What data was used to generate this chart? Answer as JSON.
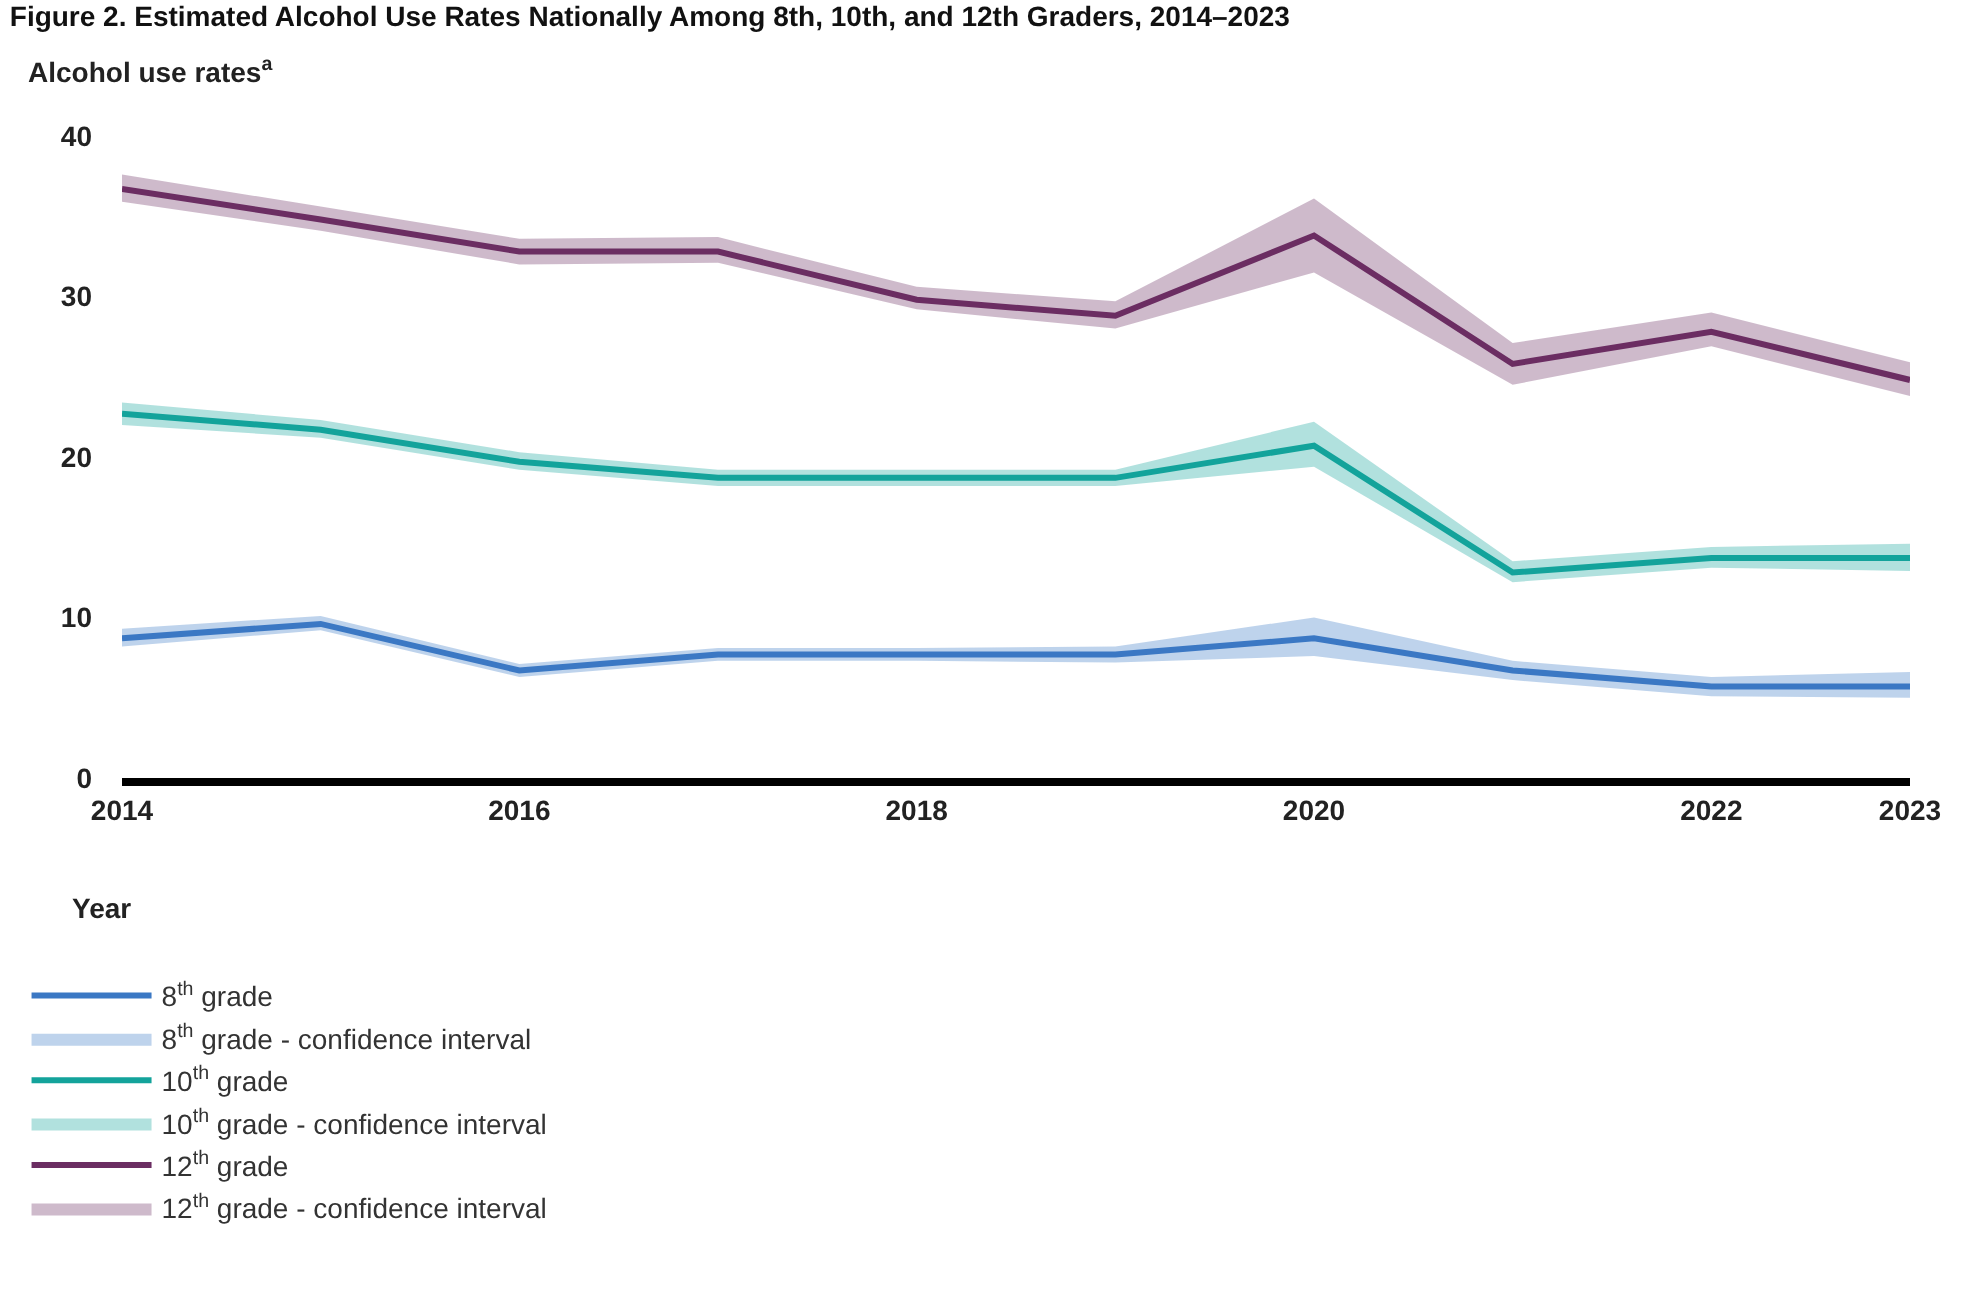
{
  "chart_data": {
    "type": "line",
    "title": "Figure 2. Estimated Alcohol Use Rates Nationally Among 8th, 10th, and 12th Graders, 2014–2023",
    "ylabel": "Alcohol use rates$^{a}$",
    "xlabel": "Year",
    "annotations": [
      "8$^{th}$ grade - confidence interval",
      "10$^{th}$ grade - confidence interval",
      "12$^{th}$ grade - confidence interval"
    ],
    "x": [
      2014,
      2015,
      2016,
      2017,
      2018,
      2019,
      2020,
      2021,
      2022,
      2023
    ],
    "xlim": [
      2014,
      2023
    ],
    "xticks": [
      2014,
      2016,
      2018,
      2020,
      2022,
      2023
    ],
    "ylim": [
      0,
      40
    ],
    "yticks": [
      0,
      10,
      20,
      30,
      40
    ],
    "grid": false,
    "legend": "bottom left",
    "marker": "none",
    "line_style": "solid",
    "series": [
      {
        "name": "8$^{th}$ grade",
        "color": "#3b78c4",
        "values": [
          8.7,
          9.6,
          6.7,
          7.7,
          7.7,
          7.7,
          8.7,
          6.7,
          5.7,
          5.7
        ],
        "lower": [
          8.2,
          9.2,
          6.3,
          7.3,
          7.3,
          7.2,
          7.6,
          6.1,
          5.1,
          5.0
        ],
        "upper": [
          9.3,
          10.1,
          7.1,
          8.1,
          8.1,
          8.2,
          10.0,
          7.3,
          6.3,
          6.6
        ]
      },
      {
        "name": "10$^{th}$ grade",
        "color": "#13a39b",
        "values": [
          22.7,
          21.7,
          19.7,
          18.7,
          18.7,
          18.7,
          20.7,
          12.8,
          13.7,
          13.7
        ],
        "lower": [
          22.0,
          21.2,
          19.2,
          18.2,
          18.2,
          18.2,
          19.4,
          12.2,
          13.1,
          12.9
        ],
        "upper": [
          23.4,
          22.3,
          20.3,
          19.2,
          19.2,
          19.2,
          22.2,
          13.5,
          14.4,
          14.6
        ]
      },
      {
        "name": "12$^{th}$ grade",
        "color": "#6b2d62",
        "values": [
          36.7,
          34.8,
          32.8,
          32.8,
          29.8,
          28.8,
          33.8,
          25.8,
          27.8,
          24.8
        ],
        "lower": [
          35.9,
          34.1,
          32.0,
          32.1,
          29.2,
          28.0,
          31.5,
          24.5,
          26.9,
          23.8
        ],
        "upper": [
          37.6,
          35.6,
          33.6,
          33.7,
          30.6,
          29.7,
          36.1,
          27.1,
          29.0,
          25.9
        ]
      }
    ]
  }
}
